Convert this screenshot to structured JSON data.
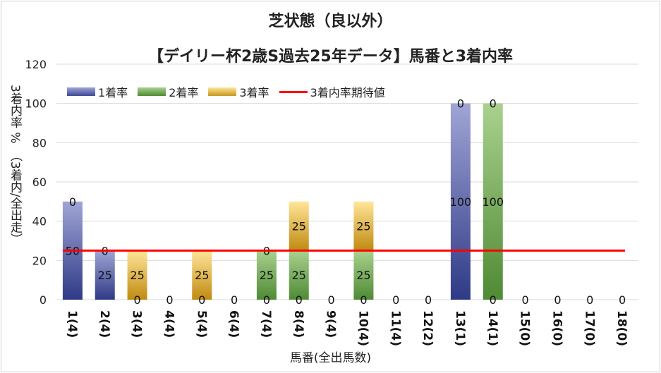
{
  "chart_data": {
    "type": "bar",
    "stacked": true,
    "title": "芝状態（良以外）",
    "subtitle": "【デイリー杯2歳S過去25年データ】馬番と3着内率",
    "xlabel": "馬番(全出馬数)",
    "ylabel": "3着内率 %　（3着内/全出走）",
    "ylim": [
      0,
      120
    ],
    "yticks": [
      0,
      20,
      40,
      60,
      80,
      100,
      120
    ],
    "grid": true,
    "legend_position": "top-left",
    "categories": [
      "1(4)",
      "2(4)",
      "3(4)",
      "4(4)",
      "5(4)",
      "6(4)",
      "7(4)",
      "8(4)",
      "9(4)",
      "10(4)",
      "11(4)",
      "12(2)",
      "13(1)",
      "14(1)",
      "15(0)",
      "16(0)",
      "17(0)",
      "18(0)"
    ],
    "series": [
      {
        "name": "1着率",
        "color": "#3c4896",
        "values": [
          50,
          25,
          0,
          0,
          0,
          0,
          0,
          0,
          0,
          0,
          0,
          0,
          100,
          0,
          0,
          0,
          0,
          0
        ]
      },
      {
        "name": "2着率",
        "color": "#4f8a34",
        "values": [
          0,
          0,
          0,
          0,
          0,
          0,
          25,
          25,
          0,
          25,
          0,
          0,
          0,
          100,
          0,
          0,
          0,
          0
        ]
      },
      {
        "name": "3着率",
        "color": "#c8961e",
        "values": [
          0,
          0,
          25,
          0,
          25,
          0,
          0,
          25,
          0,
          25,
          0,
          0,
          0,
          0,
          0,
          0,
          0,
          0
        ]
      },
      {
        "name": "3着内率期待値",
        "color": "#ff0000",
        "type": "line",
        "value": 25
      }
    ]
  }
}
